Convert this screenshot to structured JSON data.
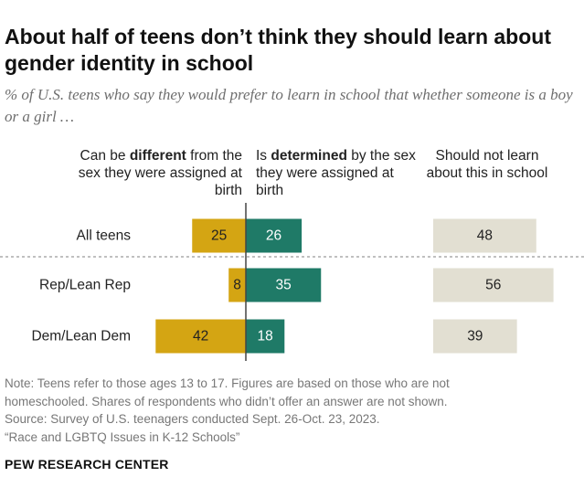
{
  "title": "About half of teens don’t think they should learn about gender identity in school",
  "subtitle": "% of U.S. teens who say they would prefer to learn in school that whether someone is a boy or a girl …",
  "columns": {
    "different": {
      "pre": "Can be ",
      "bold": "different",
      "post": " from the sex they were assigned at birth"
    },
    "determined": {
      "pre": "Is ",
      "bold": "determined",
      "post": " by the sex they were assigned at birth"
    },
    "not_learn": {
      "text": "Should not learn about this in school"
    }
  },
  "colors": {
    "different": "#d4a513",
    "determined": "#1f7a67",
    "not_learn": "#e2dfd2",
    "axis": "#444444",
    "separator": "#9a9a9a"
  },
  "chart_data": {
    "type": "bar",
    "categories": [
      "All teens",
      "Rep/Lean Rep",
      "Dem/Lean Dem"
    ],
    "series": [
      {
        "name": "Can be different from the sex they were assigned at birth",
        "values": [
          25,
          8,
          42
        ]
      },
      {
        "name": "Is determined by the sex they were assigned at birth",
        "values": [
          26,
          35,
          18
        ]
      },
      {
        "name": "Should not learn about this in school",
        "values": [
          48,
          56,
          39
        ]
      }
    ]
  },
  "notes": [
    "Note: Teens refer to those ages 13 to 17. Figures are based on those who are not",
    "homeschooled. Shares of respondents who didn’t offer an answer are not shown.",
    "Source: Survey of U.S. teenagers conducted Sept. 26-Oct. 23, 2023.",
    "“Race and LGBTQ Issues in K-12 Schools”"
  ],
  "footer": "PEW RESEARCH CENTER"
}
